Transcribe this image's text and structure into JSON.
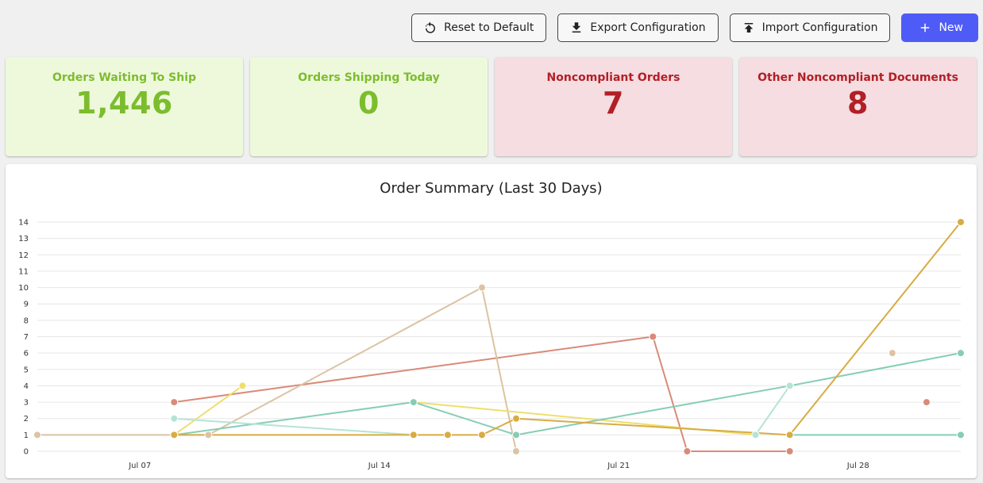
{
  "toolbar": {
    "reset_label": "Reset to Default",
    "export_label": "Export Configuration",
    "import_label": "Import Configuration",
    "new_label": "New",
    "icons": {
      "reset": "reset-icon",
      "export": "download-icon",
      "import": "upload-icon",
      "new": "plus-icon"
    }
  },
  "cards": [
    {
      "label": "Orders Waiting To Ship",
      "value": "1,446",
      "tone": "green"
    },
    {
      "label": "Orders Shipping Today",
      "value": "0",
      "tone": "green"
    },
    {
      "label": "Noncompliant Orders",
      "value": "7",
      "tone": "red"
    },
    {
      "label": "Other Noncompliant Documents",
      "value": "8",
      "tone": "red"
    }
  ],
  "chart_data": {
    "type": "line",
    "title": "Order Summary (Last 30 Days)",
    "xlabel": "",
    "ylabel": "",
    "ylim": [
      0,
      14
    ],
    "yticks": [
      0,
      1,
      2,
      3,
      4,
      5,
      6,
      7,
      8,
      9,
      10,
      11,
      12,
      13,
      14
    ],
    "xlim": [
      "2024-07-04",
      "2024-07-31"
    ],
    "xticks": [
      {
        "date": "2024-07-07",
        "label": "Jul 07"
      },
      {
        "date": "2024-07-14",
        "label": "Jul 14"
      },
      {
        "date": "2024-07-21",
        "label": "Jul 21"
      },
      {
        "date": "2024-07-28",
        "label": "Jul 28"
      }
    ],
    "grid": true,
    "legend": "none",
    "series": [
      {
        "color": "#d98b78",
        "points": [
          [
            "2024-07-08",
            3
          ],
          [
            "2024-07-22",
            7
          ],
          [
            "2024-07-23",
            0
          ],
          [
            "2024-07-26",
            0
          ]
        ]
      },
      {
        "color": "#d98b78",
        "points": [
          [
            "2024-07-30",
            3
          ]
        ]
      },
      {
        "color": "#dcc3a3",
        "points": [
          [
            "2024-07-04",
            1
          ],
          [
            "2024-07-09",
            1
          ],
          [
            "2024-07-17",
            10
          ],
          [
            "2024-07-18",
            0
          ]
        ]
      },
      {
        "color": "#dcc3a3",
        "points": [
          [
            "2024-07-29",
            6
          ]
        ]
      },
      {
        "color": "#eedf6d",
        "points": [
          [
            "2024-07-08",
            1
          ],
          [
            "2024-07-10",
            4
          ]
        ]
      },
      {
        "color": "#eedf6d",
        "points": [
          [
            "2024-07-15",
            3
          ],
          [
            "2024-07-25",
            1
          ]
        ]
      },
      {
        "color": "#86cdb6",
        "points": [
          [
            "2024-07-08",
            1
          ],
          [
            "2024-07-15",
            3
          ],
          [
            "2024-07-18",
            1
          ],
          [
            "2024-07-26",
            4
          ],
          [
            "2024-07-31",
            6
          ]
        ]
      },
      {
        "color": "#86cdb6",
        "points": [
          [
            "2024-07-26",
            1
          ],
          [
            "2024-07-31",
            1
          ]
        ]
      },
      {
        "color": "#b4e4d7",
        "points": [
          [
            "2024-07-08",
            2
          ],
          [
            "2024-07-15",
            1
          ]
        ]
      },
      {
        "color": "#b4e4d7",
        "points": [
          [
            "2024-07-25",
            1
          ],
          [
            "2024-07-26",
            4
          ]
        ]
      },
      {
        "color": "#d7ac42",
        "points": [
          [
            "2024-07-08",
            1
          ],
          [
            "2024-07-15",
            1
          ],
          [
            "2024-07-16",
            1
          ],
          [
            "2024-07-17",
            1
          ],
          [
            "2024-07-18",
            2
          ],
          [
            "2024-07-26",
            1
          ],
          [
            "2024-07-31",
            14
          ]
        ]
      }
    ]
  }
}
